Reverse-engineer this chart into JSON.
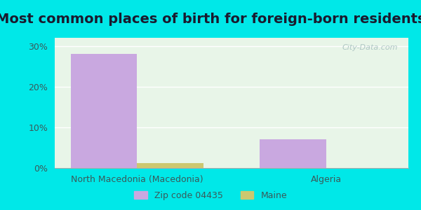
{
  "title": "Most common places of birth for foreign-born residents",
  "categories": [
    "North Macedonia (Macedonia)",
    "Algeria"
  ],
  "zip_values": [
    28.0,
    7.0
  ],
  "maine_values": [
    1.2,
    0.0
  ],
  "zip_color": "#c9a8e0",
  "maine_color": "#ccc870",
  "bar_width": 0.35,
  "ylim": [
    0,
    32
  ],
  "yticks": [
    0,
    10,
    20,
    30
  ],
  "yticklabels": [
    "0%",
    "10%",
    "20%",
    "30%"
  ],
  "legend_zip_label": "Zip code 04435",
  "legend_maine_label": "Maine",
  "watermark": "City-Data.com",
  "bg_outer": "#00e8e8",
  "title_color": "#1a1a2e",
  "tick_color": "#3a5a5a",
  "title_fontsize": 14,
  "axis_fontsize": 9,
  "legend_fontsize": 9
}
